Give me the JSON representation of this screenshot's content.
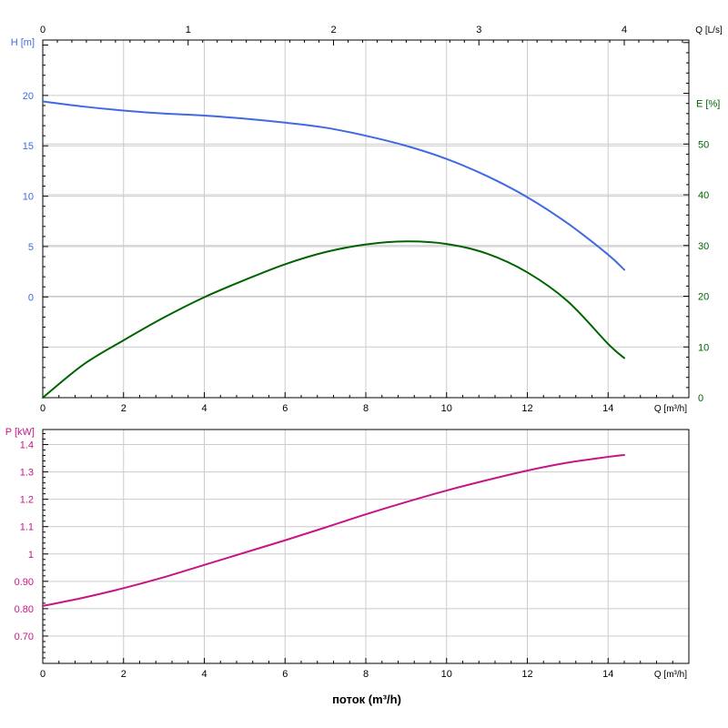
{
  "colors": {
    "head": "#4169e1",
    "efficiency": "#006400",
    "power": "#c71585",
    "axis": "#000000",
    "grid": "#cccccc"
  },
  "chart_data": [
    {
      "type": "line",
      "panel": "top",
      "x_axis_bottom": {
        "label": "Q [m³/h]",
        "ticks": [
          0,
          2,
          4,
          6,
          8,
          10,
          12,
          14
        ],
        "range": [
          0,
          16
        ]
      },
      "x_axis_top": {
        "label": "Q [L/s]",
        "ticks": [
          0,
          1,
          2,
          3,
          4
        ],
        "range": [
          0,
          4.4444
        ]
      },
      "y_axis_left": {
        "label": "H [m]",
        "ticks": [
          0,
          5,
          10,
          15,
          20
        ],
        "tick_labels": [
          "0",
          "5",
          "10",
          "15",
          "20"
        ],
        "range": [
          -10,
          25.5
        ]
      },
      "y_axis_right": {
        "label": "E [%]",
        "ticks": [
          0,
          10,
          20,
          30,
          40,
          50
        ],
        "tick_labels": [
          "0",
          "10",
          "20",
          "30",
          "40",
          "50"
        ],
        "range": [
          0,
          70.5
        ]
      },
      "grid": true,
      "series": [
        {
          "key": "head",
          "axis": "left",
          "x": [
            0,
            1,
            2,
            3,
            4,
            5,
            6,
            7,
            8,
            9,
            10,
            11,
            12,
            13,
            14,
            14.4
          ],
          "y": [
            19.4,
            18.9,
            18.5,
            18.2,
            18.0,
            17.7,
            17.3,
            16.8,
            16.0,
            15.0,
            13.7,
            12.0,
            9.9,
            7.3,
            4.2,
            2.7
          ]
        },
        {
          "key": "efficiency",
          "axis": "right",
          "x": [
            0,
            1,
            2,
            3,
            4,
            5,
            6,
            7,
            8,
            9,
            10,
            11,
            12,
            13,
            14,
            14.4
          ],
          "y": [
            0,
            6.5,
            11.3,
            15.8,
            19.8,
            23.2,
            26.3,
            28.7,
            30.2,
            30.8,
            30.3,
            28.4,
            24.7,
            19.0,
            10.6,
            7.8
          ]
        }
      ]
    },
    {
      "type": "line",
      "panel": "bottom",
      "x_axis_bottom": {
        "label": "Q [m³/h]",
        "ticks": [
          0,
          2,
          4,
          6,
          8,
          10,
          12,
          14
        ],
        "range": [
          0,
          16
        ]
      },
      "y_axis_left": {
        "label": "P [kW]",
        "ticks": [
          0.7,
          0.8,
          0.9,
          1.0,
          1.1,
          1.2,
          1.3,
          1.4
        ],
        "tick_labels": [
          "0.70",
          "0.80",
          "0.90",
          "1",
          "1.1",
          "1.2",
          "1.3",
          "1.4"
        ],
        "range": [
          0.6,
          1.455
        ]
      },
      "grid": true,
      "series": [
        {
          "key": "power",
          "axis": "left",
          "x": [
            0,
            1,
            2,
            3,
            4,
            5,
            6,
            7,
            8,
            9,
            10,
            11,
            12,
            13,
            14,
            14.4
          ],
          "y": [
            0.81,
            0.84,
            0.875,
            0.915,
            0.96,
            1.005,
            1.05,
            1.097,
            1.145,
            1.19,
            1.232,
            1.27,
            1.305,
            1.334,
            1.355,
            1.362
          ]
        }
      ]
    }
  ],
  "xlabel": "поток (m³/h)"
}
